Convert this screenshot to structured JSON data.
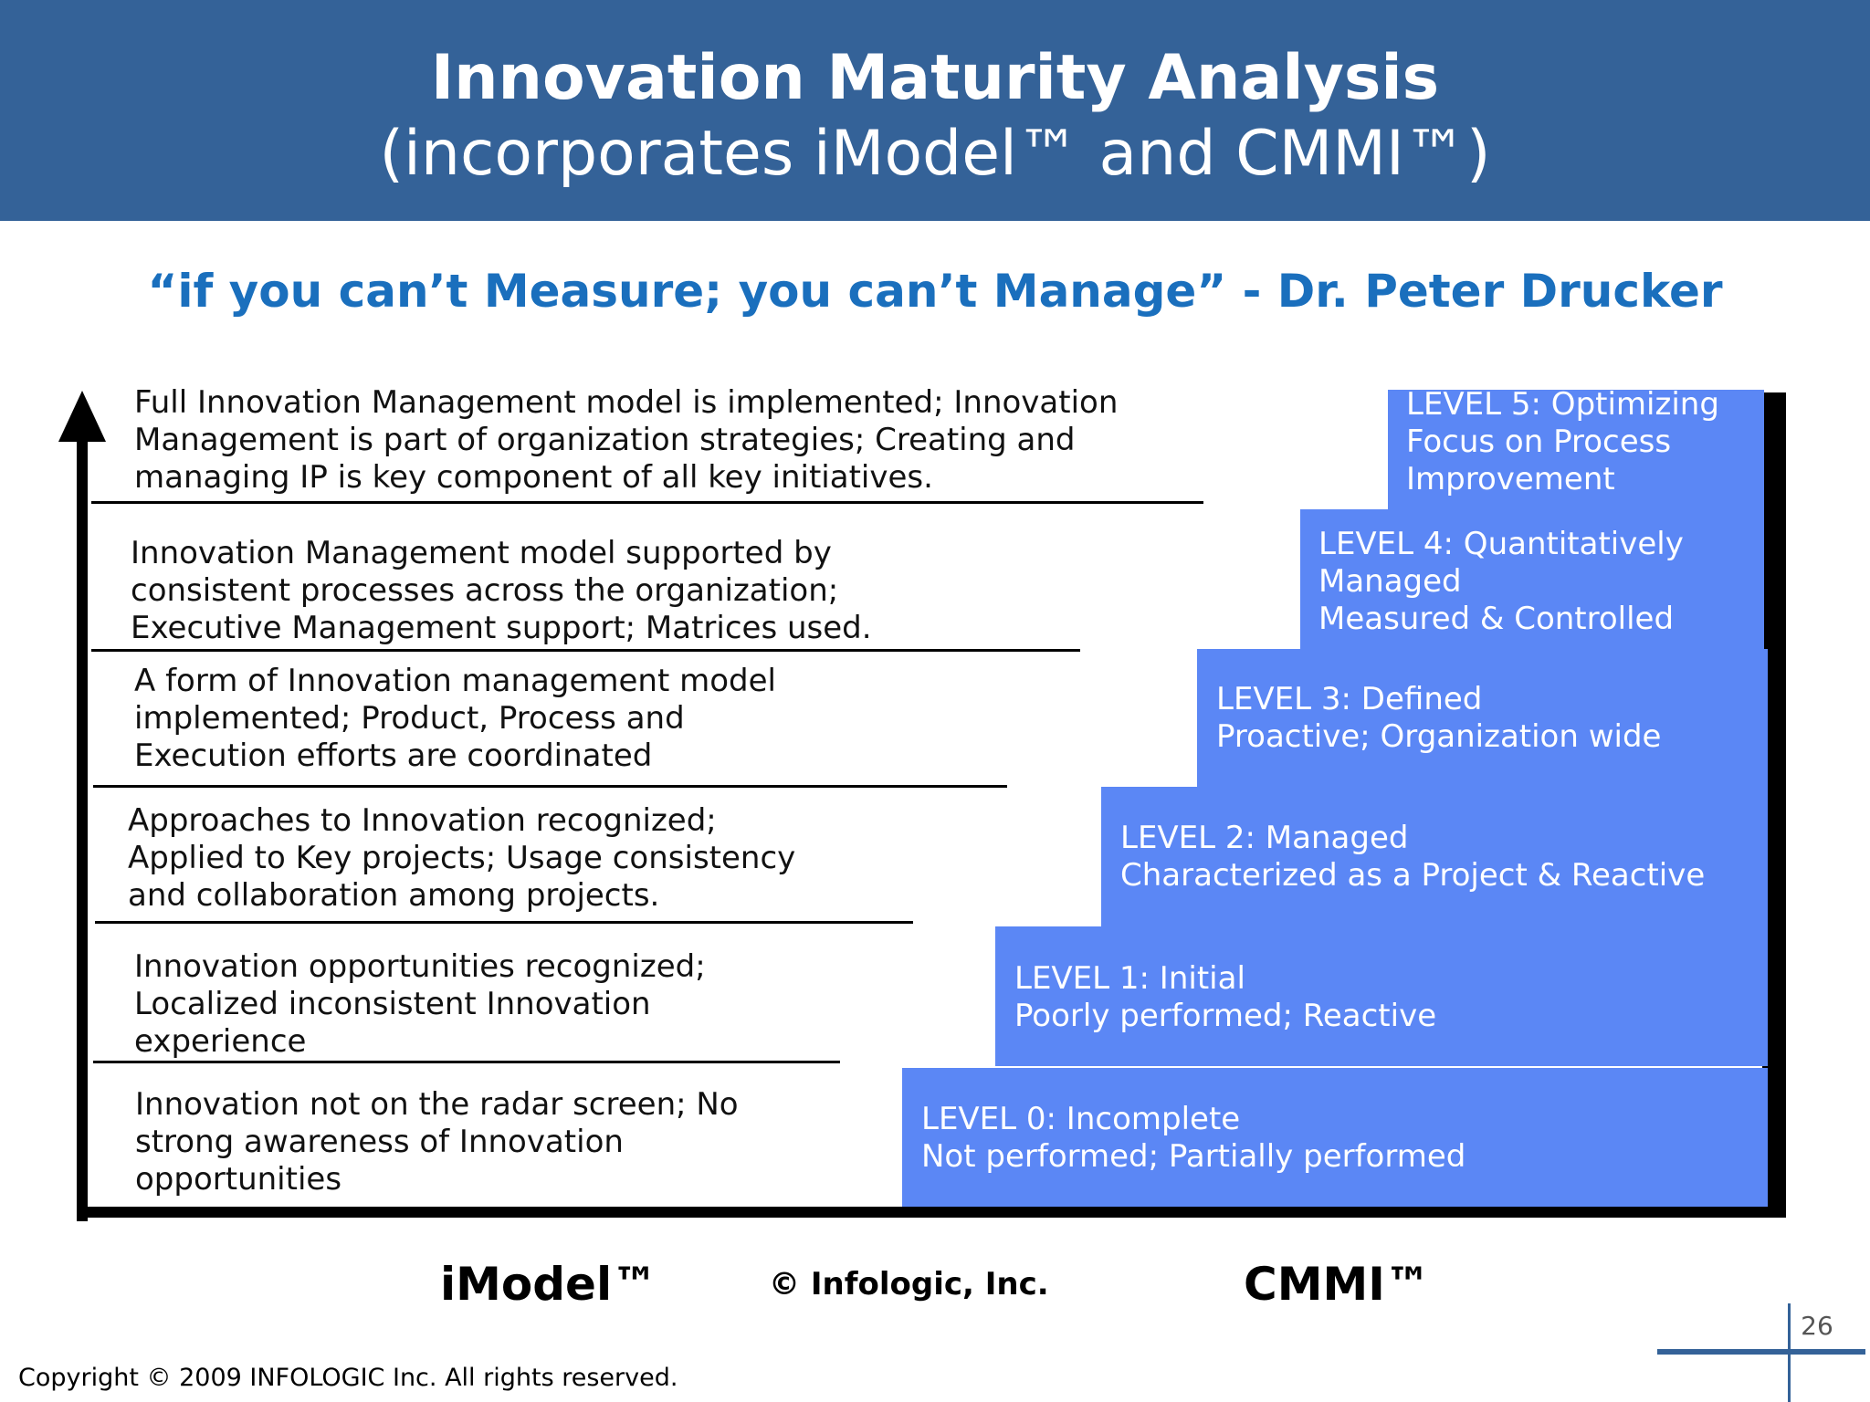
{
  "title": {
    "line1": "Innovation Maturity Analysis",
    "line2": "(incorporates iModel™ and CMMI™)"
  },
  "quote": "“if you can’t Measure; you can’t Manage”  - Dr. Peter Drucker",
  "imodel_descriptions": [
    {
      "lines": [
        "Innovation  not on the radar screen; No",
        "strong awareness of Innovation",
        "opportunities"
      ]
    },
    {
      "lines": [
        "Innovation opportunities recognized;",
        "Localized inconsistent Innovation",
        "experience"
      ]
    },
    {
      "lines": [
        "Approaches to Innovation recognized;",
        "Applied to Key projects; Usage consistency",
        "and collaboration among projects."
      ]
    },
    {
      "lines": [
        "A form of Innovation management model",
        "implemented; Product, Process and",
        "Execution efforts are coordinated"
      ]
    },
    {
      "lines": [
        "Innovation Management model supported by",
        "consistent processes across the organization;",
        "Executive Management support; Matrices used."
      ]
    },
    {
      "lines": [
        "Full Innovation Management model is implemented; Innovation",
        "Management is part of organization strategies; Creating and",
        "managing IP is key component of all key initiatives."
      ]
    }
  ],
  "cmmi_levels": [
    {
      "lines": [
        "LEVEL 0: Incomplete",
        "Not performed; Partially performed"
      ]
    },
    {
      "lines": [
        "LEVEL 1: Initial",
        "Poorly performed; Reactive"
      ]
    },
    {
      "lines": [
        "LEVEL 2: Managed",
        "Characterized as a Project & Reactive"
      ]
    },
    {
      "lines": [
        "LEVEL 3: Defined",
        "Proactive; Organization wide"
      ]
    },
    {
      "lines": [
        "LEVEL 4: Quantitatively",
        "Managed",
        "Measured & Controlled"
      ]
    },
    {
      "lines": [
        "LEVEL 5: Optimizing",
        "Focus on Process",
        "Improvement"
      ]
    }
  ],
  "footer": {
    "imodel_label": "iModel™",
    "infologic_label": "© Infologic, Inc.",
    "cmmi_label": "CMMI™",
    "copyright": "Copyright © 2009 INFOLOGIC Inc.  All rights reserved.",
    "page_number": "26"
  },
  "colors": {
    "title_band": "#346298",
    "quote": "#1a6fbd",
    "step_fill": "#5b87f5"
  }
}
